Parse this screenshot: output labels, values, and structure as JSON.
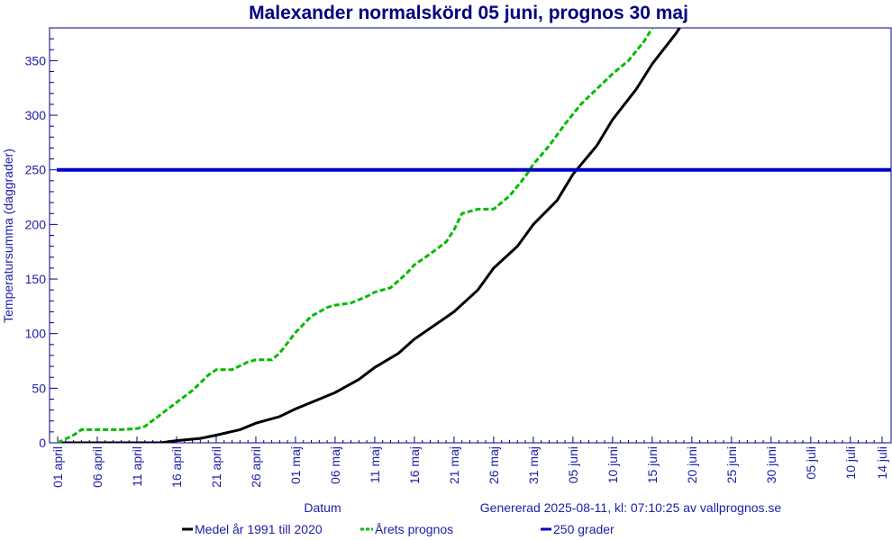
{
  "chart_data": {
    "type": "line",
    "title": "Malexander normalskörd 05 juni, prognos 30 maj",
    "xlabel": "Datum",
    "ylabel": "Temperatursumma (daggrader)",
    "footer": "Genererad 2025-08-11, kl: 07:10:25 av vallprognos.se",
    "x_unit": "days from 01 april",
    "x_tick_labels": [
      "01 april",
      "06 april",
      "11 april",
      "16 april",
      "21 april",
      "26 april",
      "01 maj",
      "06 maj",
      "11 maj",
      "16 maj",
      "21 maj",
      "26 maj",
      "31 maj",
      "05 juni",
      "10 juni",
      "15 juni",
      "20 juni",
      "25 juni",
      "30 juni",
      "05 juli",
      "10 juli",
      "14 juli"
    ],
    "x_tick_days": [
      0,
      5,
      10,
      15,
      20,
      25,
      30,
      35,
      40,
      45,
      50,
      55,
      60,
      65,
      70,
      75,
      80,
      85,
      90,
      95,
      100,
      104
    ],
    "y_ticks": [
      0,
      50,
      100,
      150,
      200,
      250,
      300,
      350
    ],
    "ylim": [
      0,
      380
    ],
    "xlim": [
      0,
      104
    ],
    "grid": false,
    "legend_position": "bottom",
    "series": [
      {
        "name": "Medel år 1991 till 2020",
        "color": "#000000",
        "style": "solid",
        "x": [
          0,
          5,
          10,
          13,
          15,
          18,
          20,
          23,
          25,
          28,
          30,
          33,
          35,
          38,
          40,
          43,
          45,
          48,
          50,
          53,
          55,
          58,
          60,
          63,
          65,
          68,
          70,
          73,
          75,
          78,
          80,
          81
        ],
        "y": [
          0,
          0,
          0,
          0,
          2,
          4,
          7,
          12,
          18,
          24,
          31,
          40,
          46,
          58,
          69,
          82,
          95,
          110,
          120,
          140,
          160,
          180,
          200,
          222,
          246,
          272,
          296,
          324,
          347,
          375,
          397,
          405
        ]
      },
      {
        "name": "Årets prognos",
        "color": "#00bb00",
        "style": "dashed",
        "x": [
          0,
          2,
          3,
          5,
          8,
          10,
          11,
          13,
          15,
          17,
          19,
          20,
          22,
          24,
          25,
          27,
          28,
          30,
          32,
          34,
          35,
          37,
          39,
          40,
          42,
          44,
          45,
          47,
          49,
          50,
          51,
          53,
          54,
          55,
          57,
          59,
          60,
          62,
          64,
          66,
          68,
          70,
          72,
          74,
          75,
          76
        ],
        "y": [
          0,
          7,
          12,
          12,
          12,
          13,
          15,
          26,
          37,
          48,
          62,
          67,
          67,
          74,
          76,
          76,
          82,
          101,
          116,
          124,
          126,
          128,
          134,
          138,
          142,
          155,
          163,
          173,
          184,
          195,
          210,
          214,
          214,
          214,
          226,
          244,
          255,
          272,
          292,
          310,
          324,
          338,
          350,
          368,
          380,
          392
        ]
      },
      {
        "name": "250 grader",
        "color": "#0000c0",
        "style": "solid",
        "x": [
          0,
          104
        ],
        "y": [
          250,
          250
        ]
      }
    ]
  }
}
